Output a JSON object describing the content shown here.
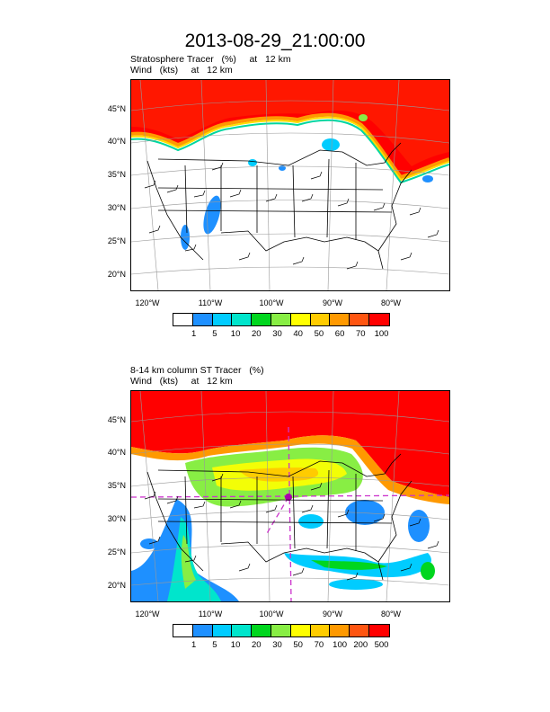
{
  "title": "2013-08-29_21:00:00",
  "colors": [
    "#ffffff",
    "#1e90ff",
    "#00ccff",
    "#00e5cc",
    "#00d61e",
    "#88ee44",
    "#ffff00",
    "#ffcc00",
    "#ff9900",
    "#ff5511",
    "#ff0000"
  ],
  "panel1": {
    "line1": "Stratosphere Tracer   (%)     at   12 km",
    "line2": "Wind   (kts)     at   12 km",
    "lat_labels": [
      "45°N",
      "40°N",
      "35°N",
      "30°N",
      "25°N",
      "20°N"
    ],
    "lon_labels": [
      "120°W",
      "110°W",
      "100°W",
      "90°W",
      "80°W"
    ],
    "colorbar_labels": [
      "1",
      "5",
      "10",
      "20",
      "30",
      "40",
      "50",
      "60",
      "70",
      "100"
    ]
  },
  "panel2": {
    "line1": "8-14 km column ST Tracer   (%)",
    "line2": "Wind   (kts)     at   12 km",
    "lat_labels": [
      "45°N",
      "40°N",
      "35°N",
      "30°N",
      "25°N",
      "20°N"
    ],
    "lon_labels": [
      "120°W",
      "110°W",
      "100°W",
      "90°W",
      "80°W"
    ],
    "colorbar_labels": [
      "1",
      "5",
      "10",
      "20",
      "30",
      "50",
      "70",
      "100",
      "200",
      "500"
    ]
  }
}
